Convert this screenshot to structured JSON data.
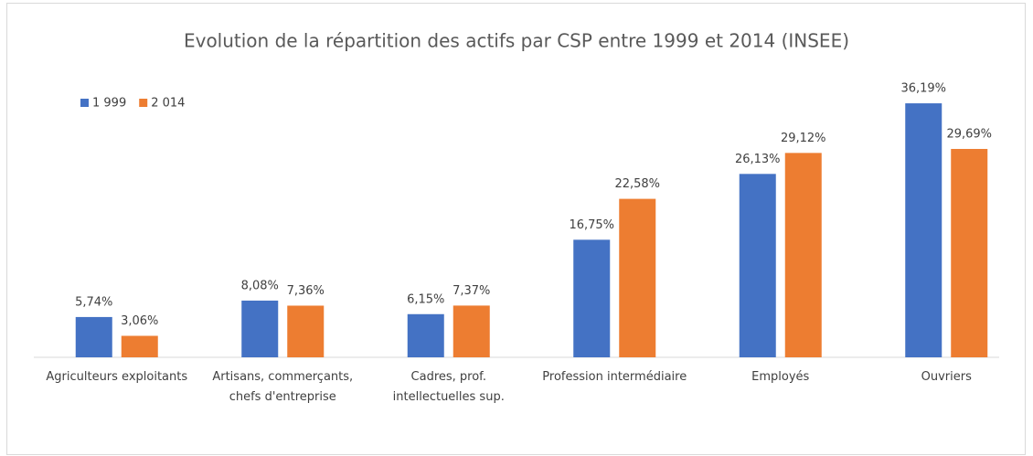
{
  "chart_data": {
    "type": "bar",
    "title": "Evolution de la répartition des actifs par CSP entre 1999 et 2014 (INSEE)",
    "categories": [
      "Agriculteurs exploitants",
      "Artisans, commerçants,\nchefs d'entreprise",
      "Cadres, prof.\nintellectuelles sup.",
      "Profession intermédiaire",
      "Employés",
      "Ouvriers"
    ],
    "series": [
      {
        "name": "1 999",
        "color": "#4472c4",
        "values": [
          5.74,
          8.08,
          6.15,
          16.75,
          26.13,
          36.19
        ],
        "value_labels": [
          "5,74%",
          "8,08%",
          "6,15%",
          "16,75%",
          "26,13%",
          "36,19%"
        ]
      },
      {
        "name": "2 014",
        "color": "#ed7d31",
        "values": [
          3.06,
          7.36,
          7.37,
          22.58,
          29.12,
          29.69
        ],
        "value_labels": [
          "3,06%",
          "7,36%",
          "7,37%",
          "22,58%",
          "29,12%",
          "29,69%"
        ]
      }
    ],
    "legend": "top-left"
  }
}
